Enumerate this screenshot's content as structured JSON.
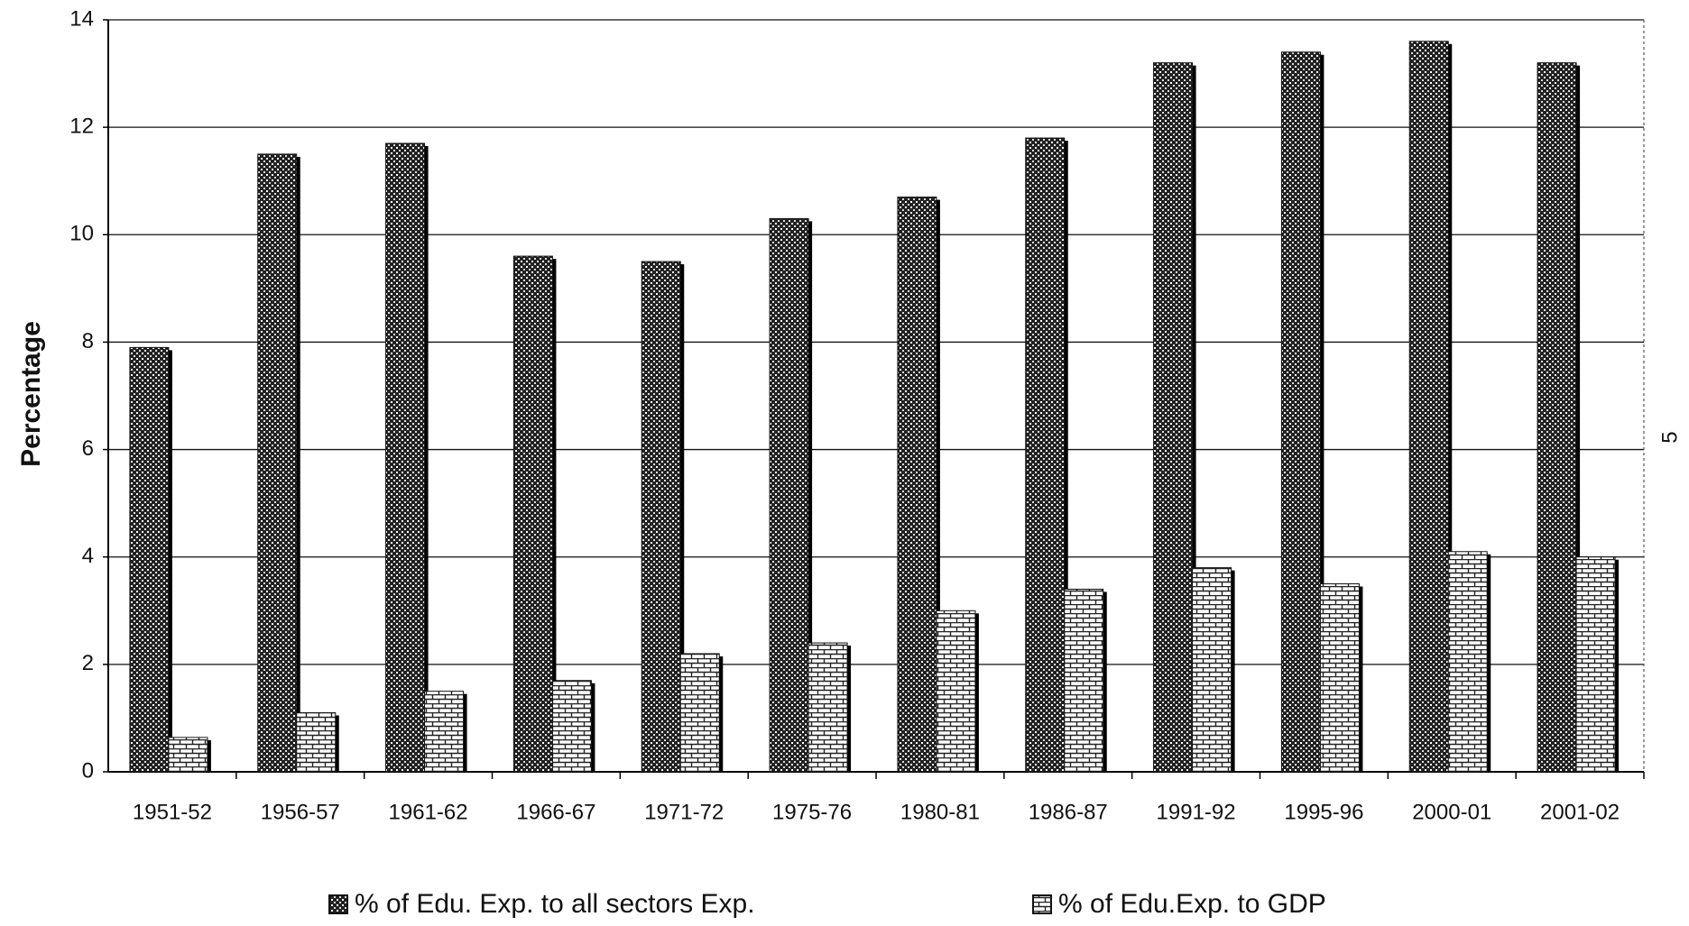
{
  "chart_data": {
    "type": "bar",
    "y_label": "Percentage",
    "side_note": "5",
    "categories": [
      "1951-52",
      "1956-57",
      "1961-62",
      "1966-67",
      "1971-72",
      "1975-76",
      "1980-81",
      "1986-87",
      "1991-92",
      "1995-96",
      "2000-01",
      "2001-02"
    ],
    "series": [
      {
        "name": "% of Edu. Exp. to all sectors Exp.",
        "color": "#222222",
        "values": [
          7.9,
          11.5,
          11.7,
          9.6,
          9.5,
          10.3,
          10.7,
          11.8,
          13.2,
          13.4,
          13.6,
          13.2
        ]
      },
      {
        "name": "% of Edu.Exp. to GDP",
        "color": "#ffffff",
        "values": [
          0.64,
          1.1,
          1.5,
          1.7,
          2.2,
          2.4,
          3.0,
          3.4,
          3.8,
          3.5,
          4.1,
          4.0
        ]
      }
    ],
    "ylim": [
      0,
      14
    ],
    "yticks": [
      0,
      2,
      4,
      6,
      8,
      10,
      12,
      14
    ],
    "grid": true
  }
}
